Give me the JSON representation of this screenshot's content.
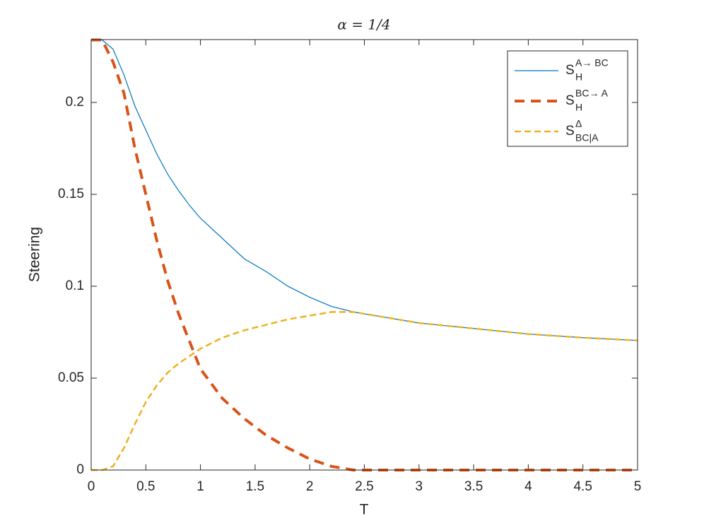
{
  "chart_data": {
    "type": "line",
    "title": "α = 1/4",
    "xlabel": "T",
    "ylabel": "Steering",
    "x": [
      0,
      0.1,
      0.2,
      0.3,
      0.4,
      0.5,
      0.6,
      0.7,
      0.8,
      0.9,
      1.0,
      1.2,
      1.4,
      1.6,
      1.8,
      2.0,
      2.2,
      2.4,
      2.6,
      2.8,
      3.0,
      3.5,
      4.0,
      4.5,
      5.0
    ],
    "series": [
      {
        "name": "S",
        "subscript": "H",
        "superscript": "A→ BC",
        "color": "#0072BD",
        "dash": "none",
        "width": 1.2,
        "values": [
          0.234,
          0.234,
          0.229,
          0.215,
          0.198,
          0.185,
          0.172,
          0.161,
          0.152,
          0.144,
          0.137,
          0.126,
          0.115,
          0.108,
          0.1,
          0.094,
          0.089,
          0.086,
          0.084,
          0.082,
          0.08,
          0.077,
          0.074,
          0.072,
          0.0705
        ]
      },
      {
        "name": "S",
        "subscript": "H",
        "superscript": "BC→ A",
        "color": "#D95319",
        "dash": "14 9",
        "width": 4,
        "values": [
          0.234,
          0.234,
          0.222,
          0.205,
          0.175,
          0.15,
          0.125,
          0.103,
          0.085,
          0.07,
          0.055,
          0.039,
          0.028,
          0.019,
          0.012,
          0.006,
          0.002,
          0,
          0,
          0,
          0,
          0,
          0,
          0,
          0
        ]
      },
      {
        "name": "S",
        "subscript": "BC|A",
        "superscript": "Δ",
        "color": "#EDB120",
        "dash": "9 5",
        "width": 2.5,
        "values": [
          0,
          0,
          0.002,
          0.012,
          0.025,
          0.037,
          0.046,
          0.053,
          0.058,
          0.062,
          0.066,
          0.072,
          0.076,
          0.079,
          0.082,
          0.084,
          0.086,
          0.086,
          0.084,
          0.082,
          0.08,
          0.077,
          0.074,
          0.072,
          0.0705
        ]
      }
    ],
    "xlim": [
      0,
      5
    ],
    "ylim": [
      0,
      0.2342
    ],
    "xticks": [
      0,
      0.5,
      1,
      1.5,
      2,
      2.5,
      3,
      3.5,
      4,
      4.5,
      5
    ],
    "yticks": [
      0,
      0.05,
      0.1,
      0.15,
      0.2
    ],
    "grid": false,
    "legend": "top-right"
  }
}
